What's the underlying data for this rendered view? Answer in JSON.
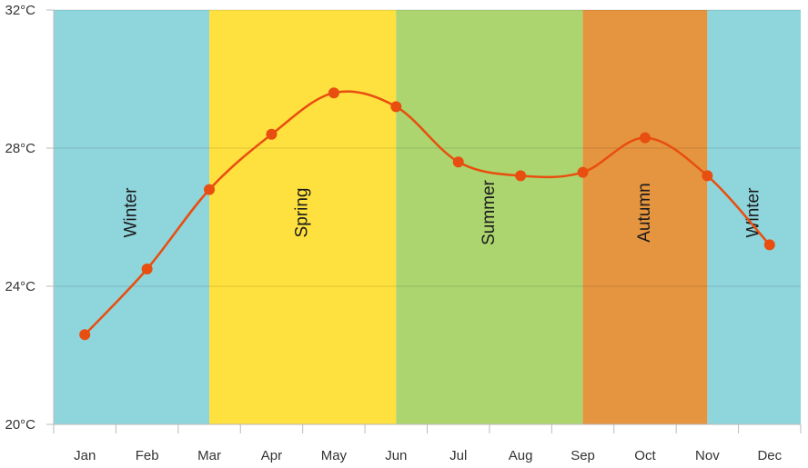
{
  "chart_data": {
    "type": "line",
    "title": "",
    "xlabel": "",
    "ylabel": "",
    "categories": [
      "Jan",
      "Feb",
      "Mar",
      "Apr",
      "May",
      "Jun",
      "Jul",
      "Aug",
      "Sep",
      "Oct",
      "Nov",
      "Dec"
    ],
    "series": [
      {
        "values": [
          22.6,
          24.5,
          26.8,
          28.4,
          29.6,
          29.2,
          27.6,
          27.2,
          27.3,
          28.3,
          27.2,
          25.2
        ]
      }
    ],
    "ylim": [
      20,
      32
    ],
    "yticks": [
      20,
      24,
      28,
      32
    ],
    "y_tick_labels": [
      "20°C",
      "24°C",
      "28°C",
      "32°C"
    ],
    "grid": true,
    "line_color": "#e84e0f",
    "bands": [
      {
        "label": "Winter",
        "from": 0,
        "to": 2.5,
        "color": "#8fd5dc"
      },
      {
        "label": "Spring",
        "from": 2.5,
        "to": 5.5,
        "color": "#fee03f"
      },
      {
        "label": "Summer",
        "from": 5.5,
        "to": 8.5,
        "color": "#acd56f"
      },
      {
        "label": "Autumn",
        "from": 8.5,
        "to": 10.5,
        "color": "#e5953f"
      },
      {
        "label": "Winter",
        "from": 10.5,
        "to": 12,
        "color": "#8fd5dc"
      }
    ]
  }
}
